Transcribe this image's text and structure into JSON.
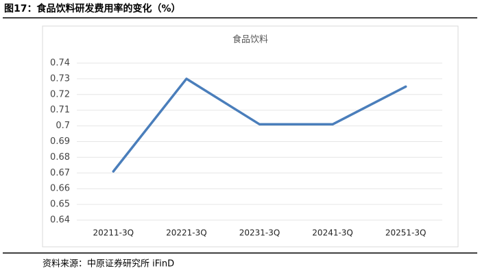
{
  "page_title": "图17：食品饮料研发费用率的变化（%）",
  "source": "资料来源：中原证券研究所 iFinD",
  "chart_data": {
    "type": "line",
    "title": "食品饮料",
    "categories": [
      "20211-3Q",
      "20221-3Q",
      "20231-3Q",
      "20241-3Q",
      "20251-3Q"
    ],
    "values": [
      0.671,
      0.73,
      0.701,
      0.701,
      0.725
    ],
    "color": "#4a7ebb",
    "ylim": [
      0.64,
      0.74
    ],
    "yticks": [
      0.64,
      0.65,
      0.66,
      0.67,
      0.68,
      0.69,
      0.7,
      0.71,
      0.72,
      0.73,
      0.74
    ],
    "grid": true
  }
}
